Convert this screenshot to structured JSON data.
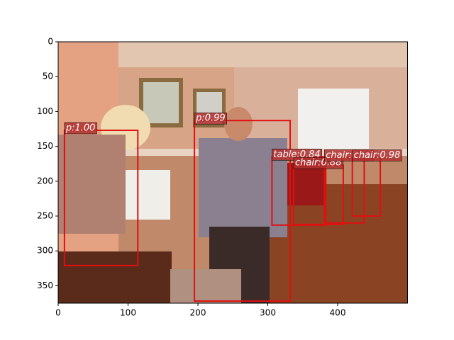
{
  "chart_data": {
    "type": "image_detections",
    "xlim": [
      0,
      500
    ],
    "ylim": [
      375,
      0
    ],
    "xticks": [
      0,
      100,
      200,
      300,
      400
    ],
    "yticks": [
      0,
      50,
      100,
      150,
      200,
      250,
      300,
      350
    ],
    "box_color": "#e01010",
    "label_color": "#b03030",
    "boxes": [
      {
        "label": "p:1.00",
        "x0": 9,
        "y0": 127,
        "x1": 114,
        "y1": 321
      },
      {
        "label": "p:0.99",
        "x0": 195,
        "y0": 113,
        "x1": 332,
        "y1": 372
      },
      {
        "label": "table:0.84",
        "x0": 306,
        "y0": 165,
        "x1": 383,
        "y1": 263
      },
      {
        "label": "chair:0.88",
        "x0": 337,
        "y0": 177,
        "x1": 408,
        "y1": 262
      },
      {
        "label": "chair:0.98",
        "x0": 381,
        "y0": 166,
        "x1": 438,
        "y1": 260
      },
      {
        "label": "chair:0.98",
        "x0": 421,
        "y0": 166,
        "x1": 461,
        "y1": 250
      }
    ]
  }
}
